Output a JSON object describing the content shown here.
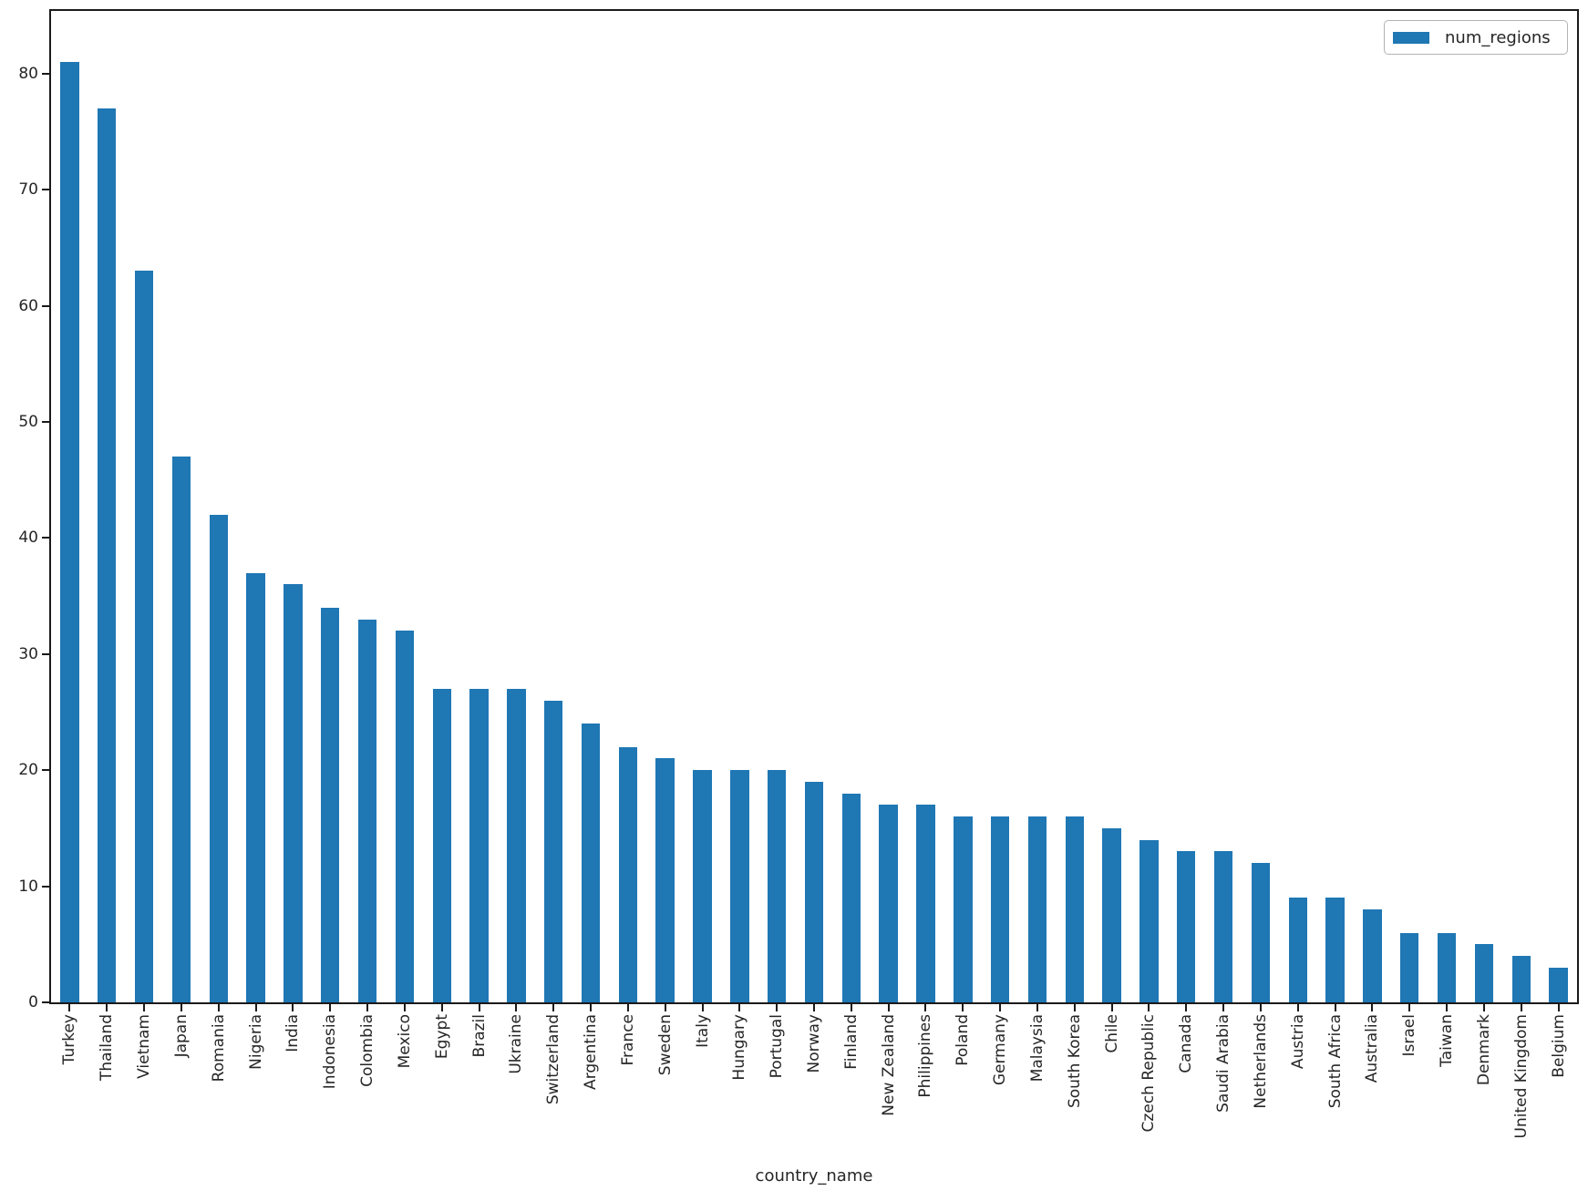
{
  "window": {
    "background": "#ffffff"
  },
  "colors": {
    "bar": "#1f77b4",
    "spine": "#1a1a1a",
    "text": "#262626",
    "legend_border": "#b3b3b3"
  },
  "chart_data": {
    "type": "bar",
    "title": "",
    "xlabel": "country_name",
    "ylabel": "",
    "grid": false,
    "legend": {
      "position": "upper right",
      "entries": [
        {
          "label": "num_regions",
          "color": "#1f77b4"
        }
      ]
    },
    "categories": [
      "Turkey",
      "Thailand",
      "Vietnam",
      "Japan",
      "Romania",
      "Nigeria",
      "India",
      "Indonesia",
      "Colombia",
      "Mexico",
      "Egypt",
      "Brazil",
      "Ukraine",
      "Switzerland",
      "Argentina",
      "France",
      "Sweden",
      "Italy",
      "Hungary",
      "Portugal",
      "Norway",
      "Finland",
      "New Zealand",
      "Philippines",
      "Poland",
      "Germany",
      "Malaysia",
      "South Korea",
      "Chile",
      "Czech Republic",
      "Canada",
      "Saudi Arabia",
      "Netherlands",
      "Austria",
      "South Africa",
      "Australia",
      "Israel",
      "Taiwan",
      "Denmark",
      "United Kingdom",
      "Belgium"
    ],
    "series": [
      {
        "name": "num_regions",
        "values": [
          81,
          77,
          63,
          47,
          42,
          37,
          36,
          34,
          33,
          32,
          27,
          27,
          27,
          26,
          24,
          22,
          21,
          20,
          20,
          20,
          19,
          18,
          17,
          17,
          16,
          16,
          16,
          16,
          15,
          14,
          13,
          13,
          12,
          9,
          9,
          8,
          6,
          6,
          5,
          4,
          3
        ]
      }
    ],
    "y_ticks": [
      0,
      10,
      20,
      30,
      40,
      50,
      60,
      70,
      80
    ],
    "ylim": [
      0,
      85.4
    ],
    "bar_rel_width": 0.5
  }
}
